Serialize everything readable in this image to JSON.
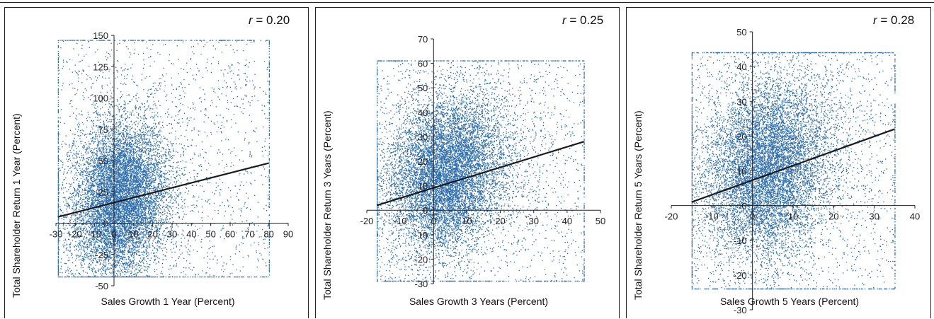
{
  "chart_data": [
    {
      "type": "scatter",
      "r_label": "r",
      "r_value": "= 0.20",
      "xlabel": "Sales Growth 1 Year (Percent)",
      "ylabel": "Total Shareholder Return 1 Year (Percent)",
      "xlim": [
        -30,
        90
      ],
      "ylim": [
        -50,
        150
      ],
      "x_ticks": [
        "-30",
        "-20",
        "-10",
        "0",
        "10",
        "20",
        "30",
        "40",
        "50",
        "60",
        "70",
        "80",
        "90"
      ],
      "y_ticks": [
        "-50",
        "-25",
        "0",
        "25",
        "50",
        "75",
        "100",
        "125",
        "150"
      ],
      "x_tick_values": [
        -30,
        -20,
        -10,
        0,
        10,
        20,
        30,
        40,
        50,
        60,
        70,
        80,
        90
      ],
      "y_tick_values": [
        -50,
        -25,
        0,
        25,
        50,
        75,
        100,
        125,
        150
      ],
      "data_box": {
        "x": [
          -29,
          80
        ],
        "y": [
          -43,
          146
        ]
      },
      "cluster_center": [
        3,
        20
      ],
      "cluster_spread": [
        11,
        32
      ],
      "trendline": {
        "x": [
          -29,
          80
        ],
        "y": [
          5,
          48
        ]
      },
      "point_color": "#2f6fb0",
      "line_color": "#1a1a1a"
    },
    {
      "type": "scatter",
      "r_label": "r",
      "r_value": "= 0.25",
      "xlabel": "Sales Growth 3 Years (Percent)",
      "ylabel": "Total Shareholder Return 3 Years (Percent)",
      "xlim": [
        -20,
        50
      ],
      "ylim": [
        -30,
        70
      ],
      "x_ticks": [
        "-20",
        "-10",
        "0",
        "10",
        "20",
        "30",
        "40",
        "50"
      ],
      "y_ticks": [
        "-30",
        "-20",
        "-10",
        "0",
        "10",
        "20",
        "30",
        "40",
        "50",
        "60",
        "70"
      ],
      "x_tick_values": [
        -20,
        -10,
        0,
        10,
        20,
        30,
        40,
        50
      ],
      "y_tick_values": [
        -30,
        -20,
        -10,
        0,
        10,
        20,
        30,
        40,
        50,
        60,
        70
      ],
      "data_box": {
        "x": [
          -17,
          45
        ],
        "y": [
          -29,
          61
        ]
      },
      "cluster_center": [
        4,
        15
      ],
      "cluster_spread": [
        8,
        16
      ],
      "trendline": {
        "x": [
          -17,
          45
        ],
        "y": [
          2,
          28
        ]
      },
      "point_color": "#2f6fb0",
      "line_color": "#1a1a1a"
    },
    {
      "type": "scatter",
      "r_label": "r",
      "r_value": "= 0.28",
      "xlabel": "Sales Growth 5 Years (Percent)",
      "ylabel": "Total Shareholder Return 5 Years (Percent)",
      "xlim": [
        -20,
        40
      ],
      "ylim": [
        -30,
        50
      ],
      "x_ticks": [
        "-20",
        "-10",
        "0",
        "10",
        "20",
        "30",
        "40"
      ],
      "y_ticks": [
        "-30",
        "-20",
        "-10",
        "0",
        "10",
        "20",
        "30",
        "40",
        "50"
      ],
      "x_tick_values": [
        -20,
        -10,
        0,
        10,
        20,
        30,
        40
      ],
      "y_tick_values": [
        -30,
        -20,
        -10,
        0,
        10,
        20,
        30,
        40,
        50
      ],
      "data_box": {
        "x": [
          -15,
          35
        ],
        "y": [
          -24,
          44
        ]
      },
      "cluster_center": [
        4,
        11
      ],
      "cluster_spread": [
        7,
        13
      ],
      "trendline": {
        "x": [
          -15,
          35
        ],
        "y": [
          1,
          22
        ]
      },
      "point_color": "#2f6fb0",
      "line_color": "#1a1a1a"
    }
  ]
}
